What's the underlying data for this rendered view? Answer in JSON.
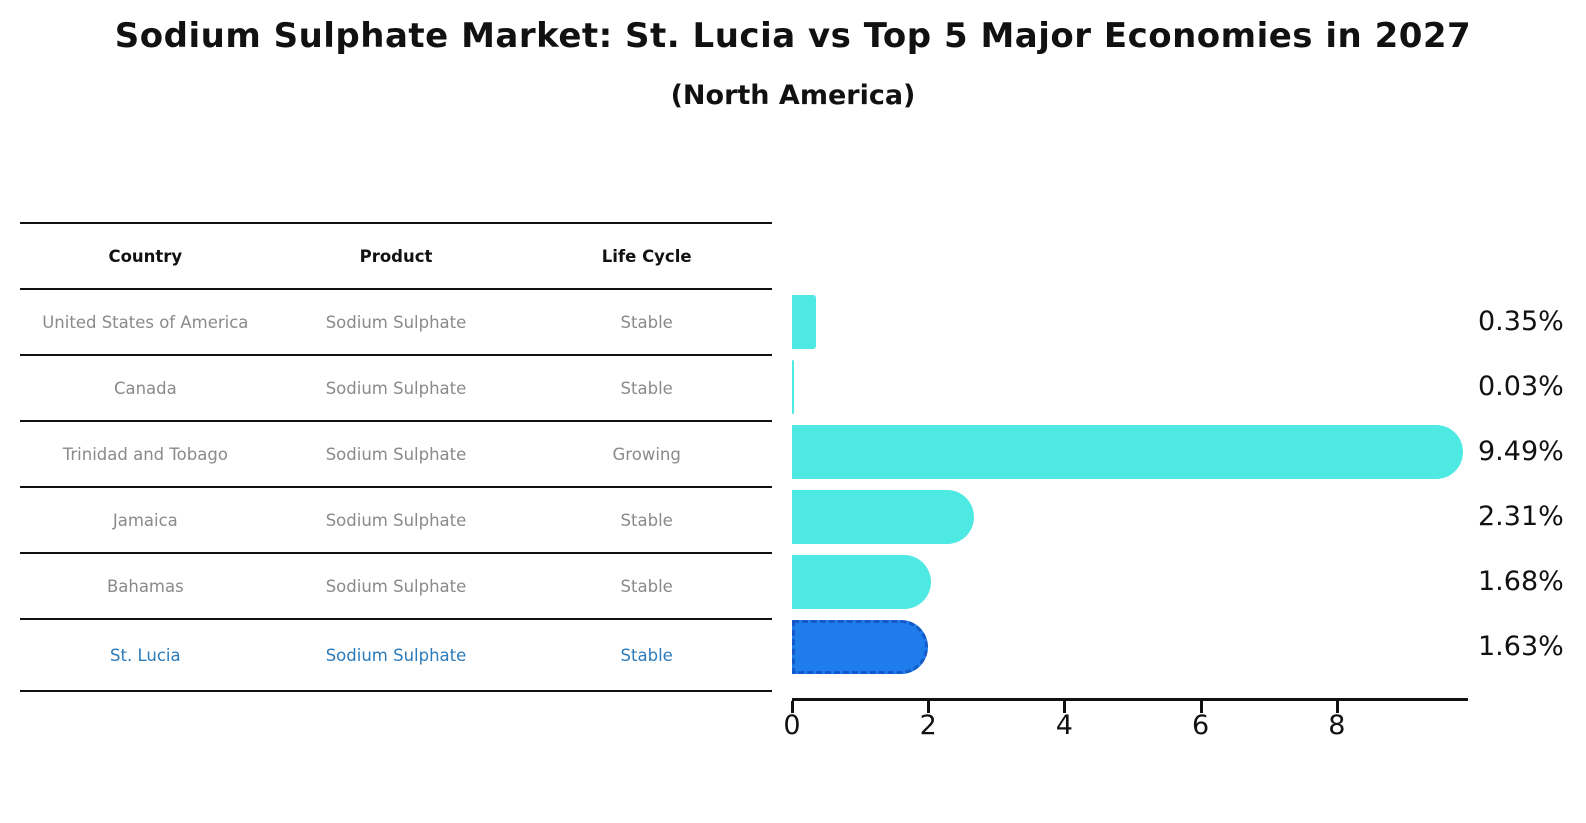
{
  "title": "Sodium Sulphate Market: St. Lucia vs Top 5 Major Economies in 2027",
  "subtitle": "(North America)",
  "table": {
    "headers": [
      "Country",
      "Product",
      "Life Cycle"
    ],
    "rows": [
      {
        "country": "United States of America",
        "product": "Sodium Sulphate",
        "life_cycle": "Stable",
        "highlighted": false
      },
      {
        "country": "Canada",
        "product": "Sodium Sulphate",
        "life_cycle": "Stable",
        "highlighted": false
      },
      {
        "country": "Trinidad and Tobago",
        "product": "Sodium Sulphate",
        "life_cycle": "Growing",
        "highlighted": false
      },
      {
        "country": "Jamaica",
        "product": "Sodium Sulphate",
        "life_cycle": "Stable",
        "highlighted": false
      },
      {
        "country": "Bahamas",
        "product": "Sodium Sulphate",
        "life_cycle": "Stable",
        "highlighted": false
      },
      {
        "country": "St. Lucia",
        "product": "Sodium Sulphate",
        "life_cycle": "Stable",
        "highlighted": true
      }
    ]
  },
  "chart_data": {
    "type": "bar",
    "orientation": "horizontal",
    "title": "Sodium Sulphate Market: St. Lucia vs Top 5 Major Economies in 2027 (North America)",
    "categories": [
      "United States of America",
      "Canada",
      "Trinidad and Tobago",
      "Jamaica",
      "Bahamas",
      "St. Lucia"
    ],
    "values": [
      0.35,
      0.03,
      9.49,
      2.31,
      1.68,
      1.63
    ],
    "value_labels": [
      "0.35%",
      "0.03%",
      "9.49%",
      "2.31%",
      "1.68%",
      "1.63%"
    ],
    "xlabel": "",
    "ylabel": "",
    "xticks": [
      0,
      2,
      4,
      6,
      8
    ],
    "xlim": [
      0,
      10
    ],
    "grid": false,
    "legend": null,
    "bar_color": "#4DE9E2",
    "highlight_index": 5,
    "highlight_color": "#1E7DEB",
    "highlight_border_color": "#1459C9"
  },
  "colors": {
    "header_text": "#111111",
    "row_text": "#8a8a8a",
    "highlight_text": "#2B7BBA",
    "axis": "#111111",
    "value_label_text": "#111111"
  }
}
